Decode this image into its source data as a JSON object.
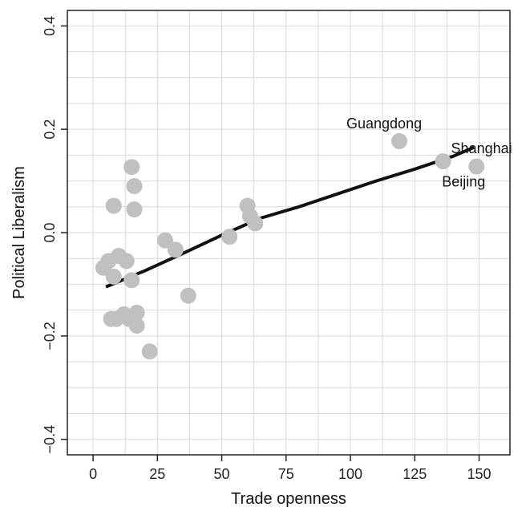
{
  "chart_data": {
    "type": "scatter",
    "title": "",
    "xlabel": "Trade openness",
    "ylabel": "Political Liberalism",
    "xlim": [
      -10,
      162
    ],
    "ylim": [
      -0.43,
      0.43
    ],
    "x_ticks": [
      0,
      25,
      50,
      75,
      100,
      125,
      150
    ],
    "x_tick_labels": [
      "0",
      "25",
      "50",
      "75",
      "100",
      "125",
      "150"
    ],
    "y_ticks": [
      -0.4,
      -0.2,
      0.0,
      0.2,
      0.4
    ],
    "y_tick_labels": [
      "-0.4",
      "-0.2",
      "0.0",
      "0.2",
      "0.4"
    ],
    "grid": true,
    "legend": "none",
    "colors": {
      "points": "#c0c0c0",
      "line": "#111111",
      "grid": "#d9d9d9",
      "frame": "#222222"
    },
    "points": [
      {
        "x": 4,
        "y": -0.068
      },
      {
        "x": 6,
        "y": -0.055
      },
      {
        "x": 8,
        "y": -0.085
      },
      {
        "x": 10,
        "y": -0.045
      },
      {
        "x": 13,
        "y": -0.055
      },
      {
        "x": 15,
        "y": -0.092
      },
      {
        "x": 8,
        "y": 0.052
      },
      {
        "x": 15,
        "y": 0.127
      },
      {
        "x": 16,
        "y": 0.09
      },
      {
        "x": 16,
        "y": 0.045
      },
      {
        "x": 7,
        "y": -0.167
      },
      {
        "x": 9,
        "y": -0.167
      },
      {
        "x": 12,
        "y": -0.158
      },
      {
        "x": 14,
        "y": -0.167
      },
      {
        "x": 17,
        "y": -0.155
      },
      {
        "x": 17,
        "y": -0.18
      },
      {
        "x": 22,
        "y": -0.23
      },
      {
        "x": 28,
        "y": -0.015
      },
      {
        "x": 32,
        "y": -0.033
      },
      {
        "x": 37,
        "y": -0.122
      },
      {
        "x": 53,
        "y": -0.008
      },
      {
        "x": 60,
        "y": 0.052
      },
      {
        "x": 61,
        "y": 0.032
      },
      {
        "x": 63,
        "y": 0.018
      },
      {
        "x": 119,
        "y": 0.177
      },
      {
        "x": 136,
        "y": 0.138
      },
      {
        "x": 149,
        "y": 0.128
      }
    ],
    "annotations": [
      {
        "text": "Guangdong",
        "x": 119,
        "y": 0.177
      },
      {
        "text": "Shanghai",
        "x": 136,
        "y": 0.138
      },
      {
        "text": "Beijing",
        "x": 149,
        "y": 0.128
      }
    ],
    "trend_line": {
      "x": [
        5,
        20,
        35,
        50,
        65,
        80,
        95,
        110,
        125,
        140,
        148
      ],
      "y": [
        -0.105,
        -0.074,
        -0.04,
        -0.005,
        0.028,
        0.05,
        0.075,
        0.1,
        0.123,
        0.148,
        0.165
      ]
    }
  }
}
